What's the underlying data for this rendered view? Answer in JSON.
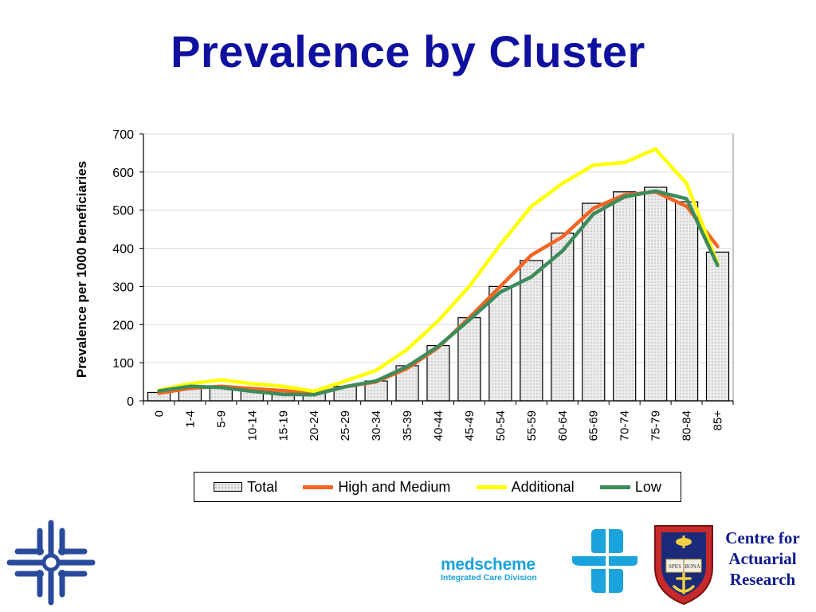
{
  "slide": {
    "title": "Prevalence by Cluster"
  },
  "chart_data": {
    "type": "bar",
    "title": "",
    "ylabel": "Prevalence per 1000 beneficiaries",
    "xlabel": "",
    "ylim": [
      0,
      700
    ],
    "yticks": [
      0,
      100,
      200,
      300,
      400,
      500,
      600,
      700
    ],
    "categories": [
      "0",
      "1-4",
      "5-9",
      "10-14",
      "15-19",
      "20-24",
      "25-29",
      "30-34",
      "35-39",
      "40-44",
      "45-49",
      "50-54",
      "55-59",
      "60-64",
      "65-69",
      "70-74",
      "75-79",
      "80-84",
      "85+"
    ],
    "series": [
      {
        "name": "Total",
        "kind": "bar",
        "values": [
          22,
          35,
          38,
          30,
          25,
          22,
          38,
          52,
          92,
          145,
          218,
          300,
          368,
          440,
          518,
          548,
          560,
          522,
          390
        ]
      },
      {
        "name": "High and Medium",
        "kind": "line",
        "color": "#f26522",
        "values": [
          20,
          33,
          38,
          32,
          27,
          18,
          37,
          50,
          85,
          140,
          218,
          300,
          382,
          430,
          505,
          540,
          548,
          510,
          405
        ]
      },
      {
        "name": "Additional",
        "kind": "line",
        "color": "#ffff00",
        "values": [
          28,
          45,
          55,
          45,
          38,
          25,
          52,
          80,
          135,
          210,
          300,
          410,
          510,
          570,
          618,
          625,
          660,
          570,
          360
        ]
      },
      {
        "name": "Low",
        "kind": "line",
        "color": "#3e8b5c",
        "values": [
          26,
          38,
          35,
          25,
          17,
          16,
          37,
          52,
          90,
          143,
          212,
          285,
          325,
          393,
          490,
          535,
          550,
          530,
          355
        ]
      }
    ],
    "grid": true,
    "legend_position": "bottom"
  },
  "logos": {
    "medscheme": {
      "name": "medscheme",
      "sub": "Integrated Care Division"
    },
    "car": {
      "line1": "Centre for",
      "line2": "Actuarial",
      "line3": "Research"
    },
    "crest_text": {
      "left_page": "SPES",
      "right_page": "BONA"
    }
  },
  "colors": {
    "title": "#0f109f",
    "medscheme": "#1ca2dc",
    "car": "#0e1a8c",
    "cross": "#2a4a9c"
  }
}
